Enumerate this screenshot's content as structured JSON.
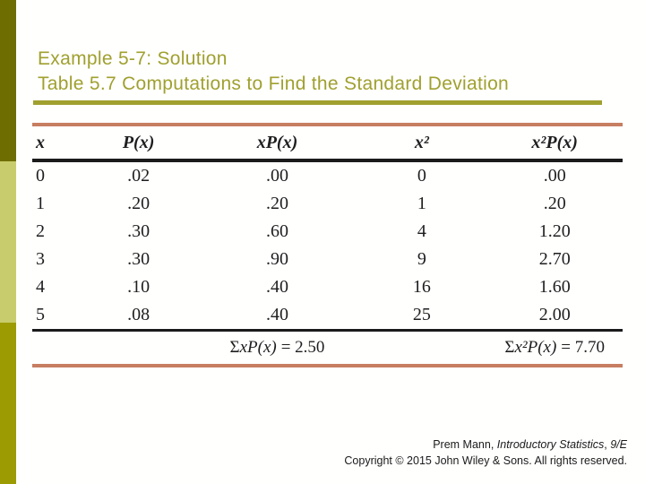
{
  "slide": {
    "title_line1": "Example 5-7: Solution",
    "title_line2": "Table 5.7 Computations to Find the Standard Deviation"
  },
  "table": {
    "headers": [
      "x",
      "P(x)",
      "xP(x)",
      "x²",
      "x²P(x)"
    ],
    "rows": [
      [
        "0",
        ".02",
        ".00",
        "0",
        ".00"
      ],
      [
        "1",
        ".20",
        ".20",
        "1",
        ".20"
      ],
      [
        "2",
        ".30",
        ".60",
        "4",
        "1.20"
      ],
      [
        "3",
        ".30",
        ".90",
        "9",
        "2.70"
      ],
      [
        "4",
        ".10",
        ".40",
        "16",
        "1.60"
      ],
      [
        "5",
        ".08",
        ".40",
        "25",
        "2.00"
      ]
    ],
    "sums": {
      "xpx": {
        "sigma": "Σ",
        "expr": "xP(x)",
        "value": "=  2.50"
      },
      "x2px": {
        "sigma": "Σ",
        "expr": "x²P(x)",
        "value": "=  7.70"
      }
    }
  },
  "footer": {
    "line1_pre": "Prem Mann, ",
    "line1_book": "Introductory Statistics",
    "line1_sep": ", ",
    "line1_edition": "9/E",
    "line2": "Copyright © 2015 John Wiley & Sons. All rights reserved."
  },
  "colors": {
    "accent_bar_dark": "#6e6d02",
    "accent_bar_light": "#c9cc6c",
    "accent_bar_medium": "#9c9b01",
    "title_olive": "#a0a030",
    "table_rule_salmon": "#c77e61",
    "table_rule_black": "#1b1b1b"
  }
}
